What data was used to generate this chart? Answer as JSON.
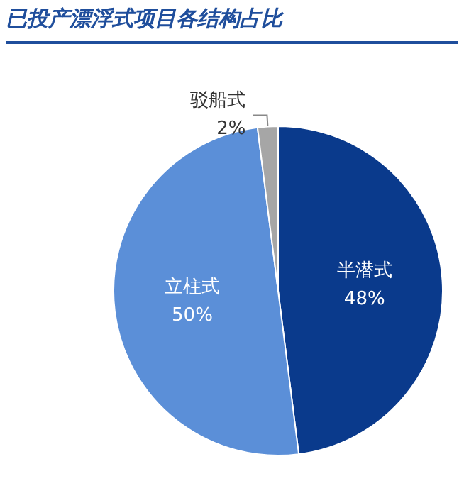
{
  "chart_data": {
    "type": "pie",
    "title": "已投产漂浮式项目各结构占比",
    "categories": [
      "半潜式",
      "立柱式",
      "驳船式"
    ],
    "values": [
      48,
      50,
      2
    ],
    "value_labels": [
      "48%",
      "50%",
      "2%"
    ],
    "colors": [
      "#0a3a8c",
      "#5b8fd8",
      "#a6a6a6"
    ],
    "legend": false
  }
}
